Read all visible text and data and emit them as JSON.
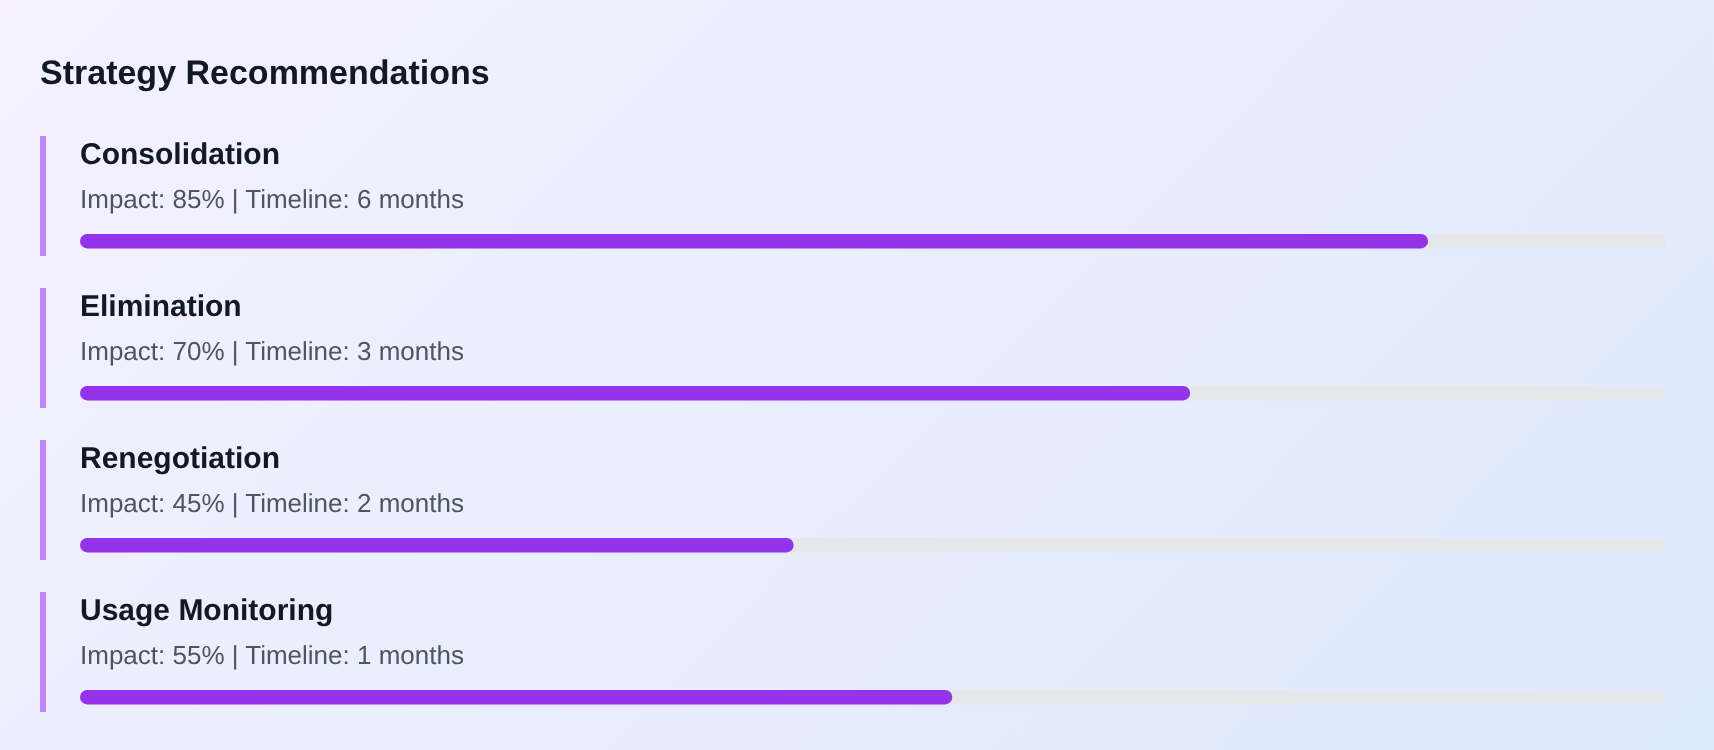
{
  "chart_data": {
    "type": "bar",
    "orientation": "horizontal",
    "title": "Strategy Recommendations",
    "categories": [
      "Consolidation",
      "Elimination",
      "Renegotiation",
      "Usage Monitoring"
    ],
    "values": [
      85,
      70,
      45,
      55
    ],
    "value_labels": [
      "Impact: 85% | Timeline: 6 months",
      "Impact: 70% | Timeline: 3 months",
      "Impact: 45% | Timeline: 2 months",
      "Impact: 55% | Timeline: 1 months"
    ],
    "color": "#9333ea",
    "xlim": [
      0,
      100
    ]
  }
}
